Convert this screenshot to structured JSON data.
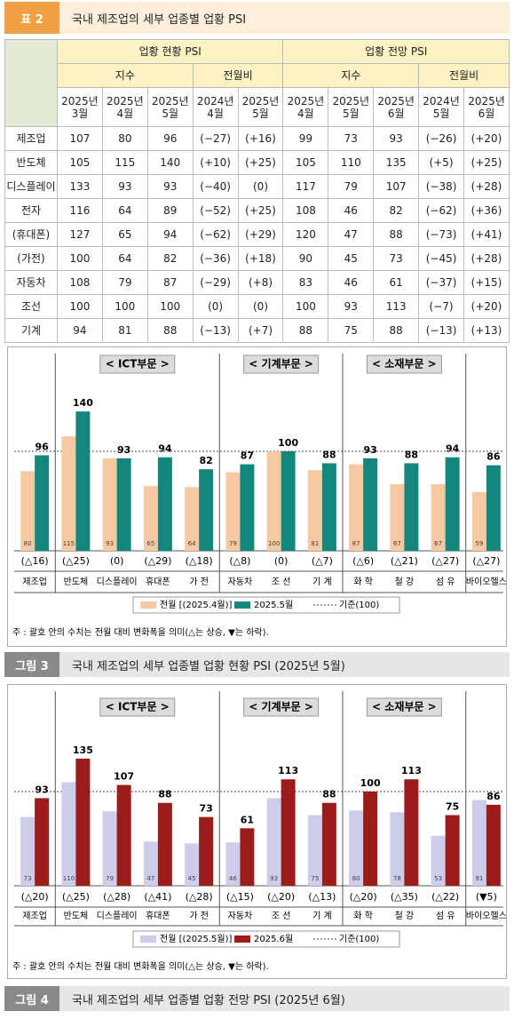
{
  "header": {
    "label": "표 2",
    "title": "국내 제조업의 세부 업종별 업황 PSI"
  },
  "table": {
    "groups": [
      "업황 현황 PSI",
      "업황 전망 PSI"
    ],
    "subgroups": [
      "지수",
      "전월비",
      "지수",
      "전월비"
    ],
    "columns": [
      "2025년 3월",
      "2025년 4월",
      "2025년 5월",
      "2024년 4월",
      "2025년 5월",
      "2025년 4월",
      "2025년 5월",
      "2025년 6월",
      "2024년 5월",
      "2025년 6월"
    ],
    "rows": [
      [
        "제조업",
        "107",
        "80",
        "96",
        "(−27)",
        "(+16)",
        "99",
        "73",
        "93",
        "(−26)",
        "(+20)"
      ],
      [
        "반도체",
        "105",
        "115",
        "140",
        "(+10)",
        "(+25)",
        "105",
        "110",
        "135",
        "(+5)",
        "(+25)"
      ],
      [
        "디스플레이",
        "133",
        "93",
        "93",
        "(−40)",
        "(0)",
        "117",
        "79",
        "107",
        "(−38)",
        "(+28)"
      ],
      [
        "전자",
        "116",
        "64",
        "89",
        "(−52)",
        "(+25)",
        "108",
        "46",
        "82",
        "(−62)",
        "(+36)"
      ],
      [
        "(휴대폰)",
        "127",
        "65",
        "94",
        "(−62)",
        "(+29)",
        "120",
        "47",
        "88",
        "(−73)",
        "(+41)"
      ],
      [
        "(가전)",
        "100",
        "64",
        "82",
        "(−36)",
        "(+18)",
        "90",
        "45",
        "73",
        "(−45)",
        "(+28)"
      ],
      [
        "자동차",
        "108",
        "79",
        "87",
        "(−29)",
        "(+8)",
        "83",
        "46",
        "61",
        "(−37)",
        "(+15)"
      ],
      [
        "조선",
        "100",
        "100",
        "100",
        "(0)",
        "(0)",
        "100",
        "93",
        "113",
        "(−7)",
        "(+20)"
      ],
      [
        "기계",
        "94",
        "81",
        "88",
        "(−13)",
        "(+7)",
        "88",
        "75",
        "88",
        "(−13)",
        "(+13)"
      ]
    ]
  },
  "chart_data": [
    {
      "type": "bar",
      "sections": [
        "< ICT부문 >",
        "< 기계부문 >",
        "< 소재부문 >"
      ],
      "categories": [
        "제조업",
        "반도체",
        "디스플레이",
        "휴대폰",
        "가 전",
        "자동차",
        "조 선",
        "기 계",
        "화 학",
        "철 강",
        "섬 유",
        "바이오헬스"
      ],
      "series": [
        {
          "name": "전월 [(2025.4월)]",
          "color": "#f6c9a2",
          "values": [
            80,
            115,
            93,
            65,
            64,
            79,
            100,
            81,
            87,
            67,
            67,
            59
          ]
        },
        {
          "name": "2025.5월",
          "color": "#14877c",
          "values": [
            96,
            140,
            93,
            94,
            82,
            87,
            100,
            88,
            93,
            88,
            94,
            86
          ]
        }
      ],
      "change_labels": [
        "(△16)",
        "(△25)",
        "(0)",
        "(△29)",
        "(△18)",
        "(△8)",
        "(0)",
        "(△7)",
        "(△6)",
        "(△21)",
        "(△27)",
        "(△27)"
      ],
      "reference_line": 100,
      "reference_name": "기준(100)",
      "ylim": [
        0,
        200
      ],
      "note": "주 : 괄호 안의 수치는 전월 대비 변화폭을 의미(△는 상승, ▼는 하락)."
    },
    {
      "type": "bar",
      "sections": [
        "< ICT부문 >",
        "< 기계부문 >",
        "< 소재부문 >"
      ],
      "categories": [
        "제조업",
        "반도체",
        "디스플레이",
        "휴대폰",
        "가 전",
        "자동차",
        "조 선",
        "기 계",
        "화 학",
        "철 강",
        "섬 유",
        "바이오헬스"
      ],
      "series": [
        {
          "name": "전월 [(2025.5월)]",
          "color": "#cdcde9",
          "values": [
            73,
            110,
            79,
            47,
            45,
            46,
            93,
            75,
            80,
            78,
            53,
            91
          ]
        },
        {
          "name": "2025.6월",
          "color": "#9c1b1b",
          "values": [
            93,
            135,
            107,
            88,
            73,
            61,
            113,
            88,
            100,
            113,
            75,
            86
          ]
        }
      ],
      "change_labels": [
        "(△20)",
        "(△25)",
        "(△28)",
        "(△41)",
        "(△28)",
        "(△15)",
        "(△20)",
        "(△13)",
        "(△20)",
        "(△35)",
        "(△22)",
        "(▼5)"
      ],
      "reference_line": 100,
      "reference_name": "기준(100)",
      "ylim": [
        0,
        200
      ],
      "note": "주 : 괄호 안의 수치는 전월 대비 변화폭을 의미(△는 상승, ▼는 하락)."
    }
  ],
  "figures": [
    {
      "label": "그림 3",
      "title": "국내 제조업의 세부 업종별 업황 현황 PSI (2025년 5월)"
    },
    {
      "label": "그림 4",
      "title": "국내 제조업의 세부 업종별 업황 전망 PSI (2025년 6월)"
    }
  ]
}
